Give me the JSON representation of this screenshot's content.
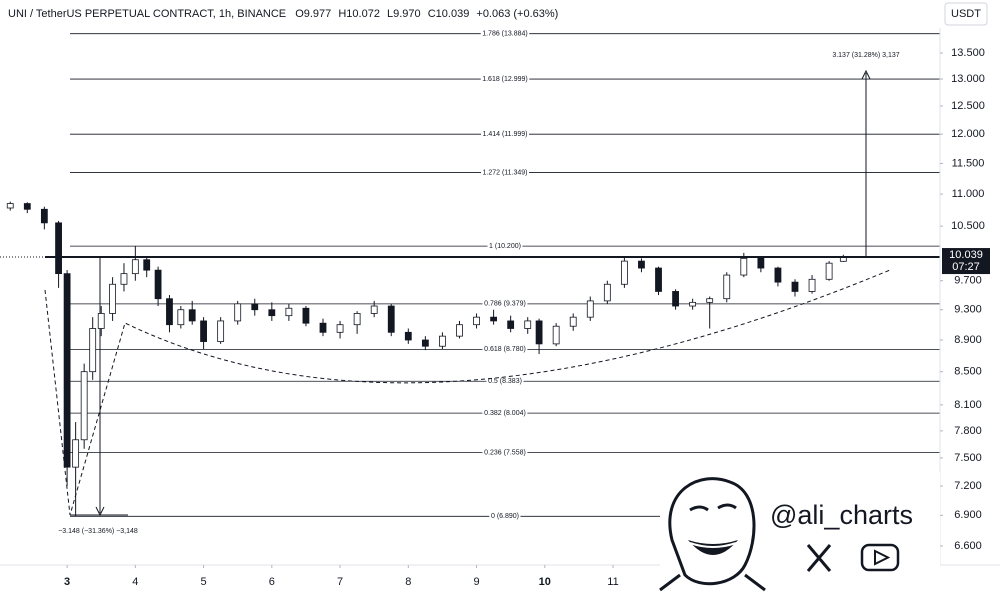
{
  "chart_data": {
    "type": "candlestick",
    "header": {
      "symbol": "UNI / TetherUS PERPETUAL CONTRACT, 1h, BINANCE",
      "ohlc": [
        "O9.977",
        "H10.072",
        "L9.970",
        "C10.039",
        "+0.063 (+0.63%)"
      ]
    },
    "currency": "USDT",
    "x": [
      -20,
      -14,
      -8,
      -3,
      0,
      3,
      6,
      9,
      12,
      16,
      20,
      24,
      28,
      32,
      36,
      40,
      44,
      48,
      54,
      60,
      66,
      72,
      78,
      84,
      90,
      96,
      102,
      108,
      114,
      120,
      126,
      132,
      138,
      144,
      150,
      156,
      162,
      166,
      172,
      178,
      184,
      190,
      196,
      202,
      208,
      214,
      220,
      226,
      232,
      238,
      244,
      250,
      256,
      262,
      268,
      273
    ],
    "open": [
      10.78,
      10.85,
      10.76,
      10.55,
      9.8,
      7.4,
      7.7,
      8.5,
      9.05,
      9.25,
      9.65,
      9.8,
      10.0,
      9.85,
      9.45,
      9.1,
      9.3,
      9.15,
      8.88,
      9.15,
      9.38,
      9.3,
      9.22,
      9.32,
      9.12,
      9.0,
      9.1,
      9.25,
      9.35,
      9.0,
      8.9,
      8.82,
      8.95,
      9.1,
      9.2,
      9.15,
      9.05,
      9.15,
      8.85,
      9.08,
      9.2,
      9.42,
      9.65,
      9.98,
      9.88,
      9.55,
      9.35,
      9.4,
      9.45,
      9.78,
      10.02,
      9.88,
      9.68,
      9.55,
      9.72,
      9.977
    ],
    "high": [
      10.88,
      10.87,
      10.8,
      10.58,
      9.85,
      7.9,
      8.6,
      9.2,
      9.35,
      9.75,
      9.95,
      10.2,
      10.05,
      9.9,
      9.5,
      9.35,
      9.42,
      9.2,
      9.2,
      9.42,
      9.45,
      9.4,
      9.38,
      9.35,
      9.18,
      9.15,
      9.28,
      9.42,
      9.38,
      9.05,
      8.95,
      9.0,
      9.15,
      9.25,
      9.3,
      9.22,
      9.2,
      9.18,
      9.12,
      9.25,
      9.48,
      9.7,
      10.03,
      10.02,
      9.9,
      9.58,
      9.45,
      9.48,
      9.82,
      10.1,
      10.05,
      9.9,
      9.72,
      9.78,
      9.98,
      10.072
    ],
    "low": [
      10.74,
      10.7,
      10.45,
      9.6,
      7.2,
      6.89,
      7.6,
      8.4,
      8.95,
      9.15,
      9.55,
      9.7,
      9.75,
      9.35,
      9.0,
      9.05,
      9.1,
      8.78,
      8.85,
      9.1,
      9.22,
      9.15,
      9.15,
      9.08,
      8.95,
      8.92,
      8.98,
      9.2,
      8.95,
      8.85,
      8.77,
      8.78,
      8.92,
      9.05,
      9.1,
      9.0,
      8.98,
      8.72,
      8.82,
      9.02,
      9.15,
      9.38,
      9.6,
      9.82,
      9.5,
      9.3,
      9.3,
      9.05,
      9.4,
      9.75,
      9.82,
      9.62,
      9.48,
      9.52,
      9.7,
      9.97
    ],
    "close": [
      10.85,
      10.76,
      10.55,
      9.8,
      7.4,
      7.7,
      8.5,
      9.05,
      9.25,
      9.65,
      9.8,
      10.0,
      9.85,
      9.45,
      9.1,
      9.3,
      9.15,
      8.88,
      9.15,
      9.38,
      9.3,
      9.22,
      9.32,
      9.12,
      9.0,
      9.1,
      9.25,
      9.35,
      9.0,
      8.9,
      8.82,
      8.95,
      9.1,
      9.2,
      9.15,
      9.05,
      9.15,
      8.85,
      9.08,
      9.2,
      9.42,
      9.65,
      9.98,
      9.88,
      9.55,
      9.35,
      9.4,
      9.45,
      9.78,
      10.02,
      9.88,
      9.68,
      9.55,
      9.72,
      9.95,
      10.039
    ],
    "up_color": "#ffffff",
    "down_color": "#131722",
    "xlim": [
      -23.6,
      307
    ],
    "xticks": [
      {
        "value": 0,
        "label": "3",
        "bold": true
      },
      {
        "value": 24,
        "label": "4"
      },
      {
        "value": 48,
        "label": "5"
      },
      {
        "value": 72,
        "label": "6"
      },
      {
        "value": 96,
        "label": "7"
      },
      {
        "value": 120,
        "label": "8"
      },
      {
        "value": 144,
        "label": "9"
      },
      {
        "value": 168,
        "label": "10",
        "bold": true
      },
      {
        "value": 192,
        "label": "11"
      }
    ],
    "ylim": [
      6.42,
      14.58
    ],
    "log_scale": true,
    "yticks": [
      {
        "value": 13.5,
        "label": "13.500"
      },
      {
        "value": 13,
        "label": "13.000"
      },
      {
        "value": 12.5,
        "label": "12.500"
      },
      {
        "value": 12,
        "label": "12.000"
      },
      {
        "value": 11.5,
        "label": "11.500"
      },
      {
        "value": 11,
        "label": "11.000"
      },
      {
        "value": 10.5,
        "label": "10.500"
      },
      {
        "value": 9.7,
        "label": "9.700"
      },
      {
        "value": 9.3,
        "label": "9.300"
      },
      {
        "value": 8.9,
        "label": "8.900"
      },
      {
        "value": 8.5,
        "label": "8.500"
      },
      {
        "value": 8.1,
        "label": "8.100"
      },
      {
        "value": 7.8,
        "label": "7.800"
      },
      {
        "value": 7.5,
        "label": "7.500"
      },
      {
        "value": 7.2,
        "label": "7.200"
      },
      {
        "value": 6.9,
        "label": "6.900"
      },
      {
        "value": 6.6,
        "label": "6.600"
      }
    ],
    "fib_levels": [
      {
        "value": 13.884,
        "label": "1.786 (13.884)"
      },
      {
        "value": 12.999,
        "label": "1.618 (12.999)"
      },
      {
        "value": 11.999,
        "label": "1.414 (11.999)"
      },
      {
        "value": 11.349,
        "label": "1.272 (11.349)"
      },
      {
        "value": 10.2,
        "label": "1 (10.200)"
      },
      {
        "value": 9.379,
        "label": "0.786 (9.379)"
      },
      {
        "value": 8.78,
        "label": "0.618 (8.780)"
      },
      {
        "value": 8.383,
        "label": "0.5 (8.383)"
      },
      {
        "value": 8.004,
        "label": "0.382 (8.004)"
      },
      {
        "value": 7.558,
        "label": "0.236 (7.558)"
      },
      {
        "value": 6.89,
        "label": "0 (6.890)"
      }
    ],
    "current_price": {
      "value": 10.039,
      "countdown": "07:27"
    },
    "annotations": {
      "target": "3.137 (31.28%) 3,137",
      "drop": "−3.148 (−31.36%) −3,148"
    },
    "watermark": "@ali_charts"
  }
}
